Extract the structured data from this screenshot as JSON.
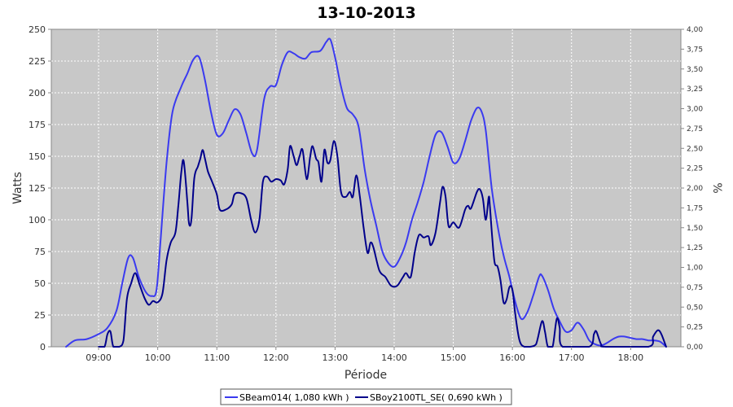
{
  "chart_data": {
    "type": "line",
    "title": "13-10-2013",
    "xlabel": "Période",
    "ylabel": "Watts",
    "y2label": "%",
    "xlim": [
      8.2,
      18.85
    ],
    "ylim": [
      0,
      250
    ],
    "y2lim": [
      0,
      4
    ],
    "x_ticks": [
      9,
      10,
      11,
      12,
      13,
      14,
      15,
      16,
      17,
      18
    ],
    "x_tick_labels": [
      "09:00",
      "10:00",
      "11:00",
      "12:00",
      "13:00",
      "14:00",
      "15:00",
      "16:00",
      "17:00",
      "18:00"
    ],
    "y_ticks": [
      0,
      25,
      50,
      75,
      100,
      125,
      150,
      175,
      200,
      225,
      250
    ],
    "y_tick_labels": [
      "0",
      "25",
      "50",
      "75",
      "100",
      "125",
      "150",
      "175",
      "200",
      "225",
      "250"
    ],
    "y2_ticks": [
      0,
      0.25,
      0.5,
      0.75,
      1,
      1.25,
      1.5,
      1.75,
      2,
      2.25,
      2.5,
      2.75,
      3,
      3.25,
      3.5,
      3.75,
      4
    ],
    "y2_tick_labels": [
      "0,00",
      "0,25",
      "0,50",
      "0,75",
      "1,00",
      "1,25",
      "1,50",
      "1,75",
      "2,00",
      "2,25",
      "2,50",
      "2,75",
      "3,00",
      "3,25",
      "3,50",
      "3,75",
      "4,00"
    ],
    "grid": true,
    "legend_position": "bottom",
    "background": "#c8c8c8",
    "series": [
      {
        "name": "SBeam014( 1,080 kWh )",
        "color": "#3a3af0",
        "points": [
          [
            8.45,
            0
          ],
          [
            8.6,
            5
          ],
          [
            8.8,
            6
          ],
          [
            9.0,
            10
          ],
          [
            9.15,
            15
          ],
          [
            9.3,
            28
          ],
          [
            9.4,
            50
          ],
          [
            9.5,
            70
          ],
          [
            9.58,
            70
          ],
          [
            9.68,
            55
          ],
          [
            9.8,
            43
          ],
          [
            9.9,
            40
          ],
          [
            9.98,
            45
          ],
          [
            10.05,
            85
          ],
          [
            10.15,
            145
          ],
          [
            10.25,
            185
          ],
          [
            10.4,
            205
          ],
          [
            10.5,
            215
          ],
          [
            10.6,
            226
          ],
          [
            10.7,
            228
          ],
          [
            10.8,
            210
          ],
          [
            10.9,
            185
          ],
          [
            11.0,
            167
          ],
          [
            11.1,
            168
          ],
          [
            11.2,
            178
          ],
          [
            11.3,
            187
          ],
          [
            11.4,
            183
          ],
          [
            11.5,
            168
          ],
          [
            11.6,
            152
          ],
          [
            11.68,
            155
          ],
          [
            11.8,
            195
          ],
          [
            11.9,
            205
          ],
          [
            12.0,
            206
          ],
          [
            12.1,
            222
          ],
          [
            12.2,
            232
          ],
          [
            12.3,
            231
          ],
          [
            12.4,
            228
          ],
          [
            12.5,
            227
          ],
          [
            12.6,
            232
          ],
          [
            12.75,
            233
          ],
          [
            12.85,
            240
          ],
          [
            12.92,
            242
          ],
          [
            13.0,
            228
          ],
          [
            13.1,
            205
          ],
          [
            13.2,
            188
          ],
          [
            13.3,
            183
          ],
          [
            13.4,
            173
          ],
          [
            13.5,
            140
          ],
          [
            13.6,
            115
          ],
          [
            13.7,
            95
          ],
          [
            13.8,
            75
          ],
          [
            13.9,
            66
          ],
          [
            14.0,
            63
          ],
          [
            14.1,
            70
          ],
          [
            14.2,
            82
          ],
          [
            14.3,
            100
          ],
          [
            14.4,
            114
          ],
          [
            14.5,
            130
          ],
          [
            14.6,
            150
          ],
          [
            14.7,
            167
          ],
          [
            14.8,
            169
          ],
          [
            14.9,
            158
          ],
          [
            15.0,
            145
          ],
          [
            15.1,
            148
          ],
          [
            15.2,
            162
          ],
          [
            15.3,
            178
          ],
          [
            15.4,
            188
          ],
          [
            15.48,
            185
          ],
          [
            15.55,
            170
          ],
          [
            15.65,
            125
          ],
          [
            15.75,
            95
          ],
          [
            15.85,
            72
          ],
          [
            15.95,
            55
          ],
          [
            16.05,
            35
          ],
          [
            16.15,
            22
          ],
          [
            16.25,
            27
          ],
          [
            16.35,
            40
          ],
          [
            16.45,
            55
          ],
          [
            16.5,
            56
          ],
          [
            16.6,
            45
          ],
          [
            16.7,
            30
          ],
          [
            16.8,
            20
          ],
          [
            16.9,
            12
          ],
          [
            17.0,
            13
          ],
          [
            17.1,
            19
          ],
          [
            17.2,
            14
          ],
          [
            17.3,
            5
          ],
          [
            17.4,
            2
          ],
          [
            17.5,
            1
          ],
          [
            17.6,
            3
          ],
          [
            17.7,
            6
          ],
          [
            17.8,
            8
          ],
          [
            17.9,
            8
          ],
          [
            18.0,
            7
          ],
          [
            18.1,
            6
          ],
          [
            18.2,
            6
          ],
          [
            18.3,
            5
          ],
          [
            18.4,
            5
          ],
          [
            18.5,
            4
          ],
          [
            18.6,
            0
          ]
        ]
      },
      {
        "name": "SBoy2100TL_SE( 0,690 kWh )",
        "color": "#00008b",
        "points": [
          [
            9.0,
            0
          ],
          [
            9.1,
            0
          ],
          [
            9.15,
            10
          ],
          [
            9.2,
            12
          ],
          [
            9.25,
            0
          ],
          [
            9.35,
            0
          ],
          [
            9.42,
            5
          ],
          [
            9.48,
            38
          ],
          [
            9.55,
            50
          ],
          [
            9.62,
            58
          ],
          [
            9.7,
            48
          ],
          [
            9.78,
            38
          ],
          [
            9.85,
            33
          ],
          [
            9.92,
            36
          ],
          [
            10.0,
            35
          ],
          [
            10.08,
            42
          ],
          [
            10.15,
            68
          ],
          [
            10.22,
            82
          ],
          [
            10.3,
            90
          ],
          [
            10.35,
            112
          ],
          [
            10.4,
            138
          ],
          [
            10.44,
            146
          ],
          [
            10.5,
            115
          ],
          [
            10.53,
            97
          ],
          [
            10.57,
            100
          ],
          [
            10.62,
            133
          ],
          [
            10.68,
            142
          ],
          [
            10.72,
            148
          ],
          [
            10.76,
            155
          ],
          [
            10.8,
            148
          ],
          [
            10.85,
            138
          ],
          [
            10.92,
            130
          ],
          [
            11.0,
            120
          ],
          [
            11.05,
            108
          ],
          [
            11.15,
            108
          ],
          [
            11.25,
            112
          ],
          [
            11.3,
            120
          ],
          [
            11.4,
            121
          ],
          [
            11.5,
            117
          ],
          [
            11.58,
            100
          ],
          [
            11.65,
            90
          ],
          [
            11.72,
            100
          ],
          [
            11.78,
            130
          ],
          [
            11.85,
            134
          ],
          [
            11.92,
            130
          ],
          [
            12.0,
            132
          ],
          [
            12.08,
            131
          ],
          [
            12.14,
            128
          ],
          [
            12.2,
            140
          ],
          [
            12.24,
            158
          ],
          [
            12.3,
            150
          ],
          [
            12.35,
            143
          ],
          [
            12.4,
            150
          ],
          [
            12.45,
            155
          ],
          [
            12.52,
            132
          ],
          [
            12.58,
            150
          ],
          [
            12.62,
            158
          ],
          [
            12.68,
            148
          ],
          [
            12.72,
            145
          ],
          [
            12.77,
            130
          ],
          [
            12.82,
            155
          ],
          [
            12.87,
            145
          ],
          [
            12.92,
            147
          ],
          [
            12.98,
            162
          ],
          [
            13.04,
            150
          ],
          [
            13.1,
            122
          ],
          [
            13.18,
            118
          ],
          [
            13.25,
            122
          ],
          [
            13.3,
            118
          ],
          [
            13.36,
            135
          ],
          [
            13.42,
            118
          ],
          [
            13.48,
            95
          ],
          [
            13.55,
            74
          ],
          [
            13.6,
            82
          ],
          [
            13.65,
            78
          ],
          [
            13.75,
            60
          ],
          [
            13.85,
            55
          ],
          [
            13.95,
            48
          ],
          [
            14.05,
            48
          ],
          [
            14.15,
            55
          ],
          [
            14.2,
            58
          ],
          [
            14.28,
            55
          ],
          [
            14.35,
            75
          ],
          [
            14.42,
            88
          ],
          [
            14.5,
            86
          ],
          [
            14.58,
            87
          ],
          [
            14.62,
            80
          ],
          [
            14.7,
            90
          ],
          [
            14.78,
            115
          ],
          [
            14.82,
            126
          ],
          [
            14.87,
            118
          ],
          [
            14.92,
            95
          ],
          [
            15.0,
            98
          ],
          [
            15.1,
            94
          ],
          [
            15.2,
            108
          ],
          [
            15.25,
            111
          ],
          [
            15.3,
            109
          ],
          [
            15.4,
            122
          ],
          [
            15.45,
            124
          ],
          [
            15.5,
            117
          ],
          [
            15.55,
            100
          ],
          [
            15.6,
            118
          ],
          [
            15.62,
            110
          ],
          [
            15.66,
            85
          ],
          [
            15.7,
            66
          ],
          [
            15.75,
            63
          ],
          [
            15.8,
            52
          ],
          [
            15.85,
            35
          ],
          [
            15.9,
            37
          ],
          [
            15.95,
            47
          ],
          [
            16.0,
            45
          ],
          [
            16.05,
            25
          ],
          [
            16.12,
            5
          ],
          [
            16.2,
            0
          ],
          [
            16.3,
            0
          ],
          [
            16.4,
            2
          ],
          [
            16.5,
            20
          ],
          [
            16.55,
            12
          ],
          [
            16.6,
            0
          ],
          [
            16.68,
            0
          ],
          [
            16.75,
            22
          ],
          [
            16.8,
            15
          ],
          [
            16.85,
            0
          ],
          [
            17.3,
            0
          ],
          [
            17.38,
            10
          ],
          [
            17.42,
            12
          ],
          [
            17.5,
            2
          ],
          [
            17.58,
            0
          ],
          [
            18.3,
            0
          ],
          [
            18.38,
            8
          ],
          [
            18.46,
            13
          ],
          [
            18.52,
            10
          ],
          [
            18.6,
            0
          ]
        ]
      }
    ]
  }
}
